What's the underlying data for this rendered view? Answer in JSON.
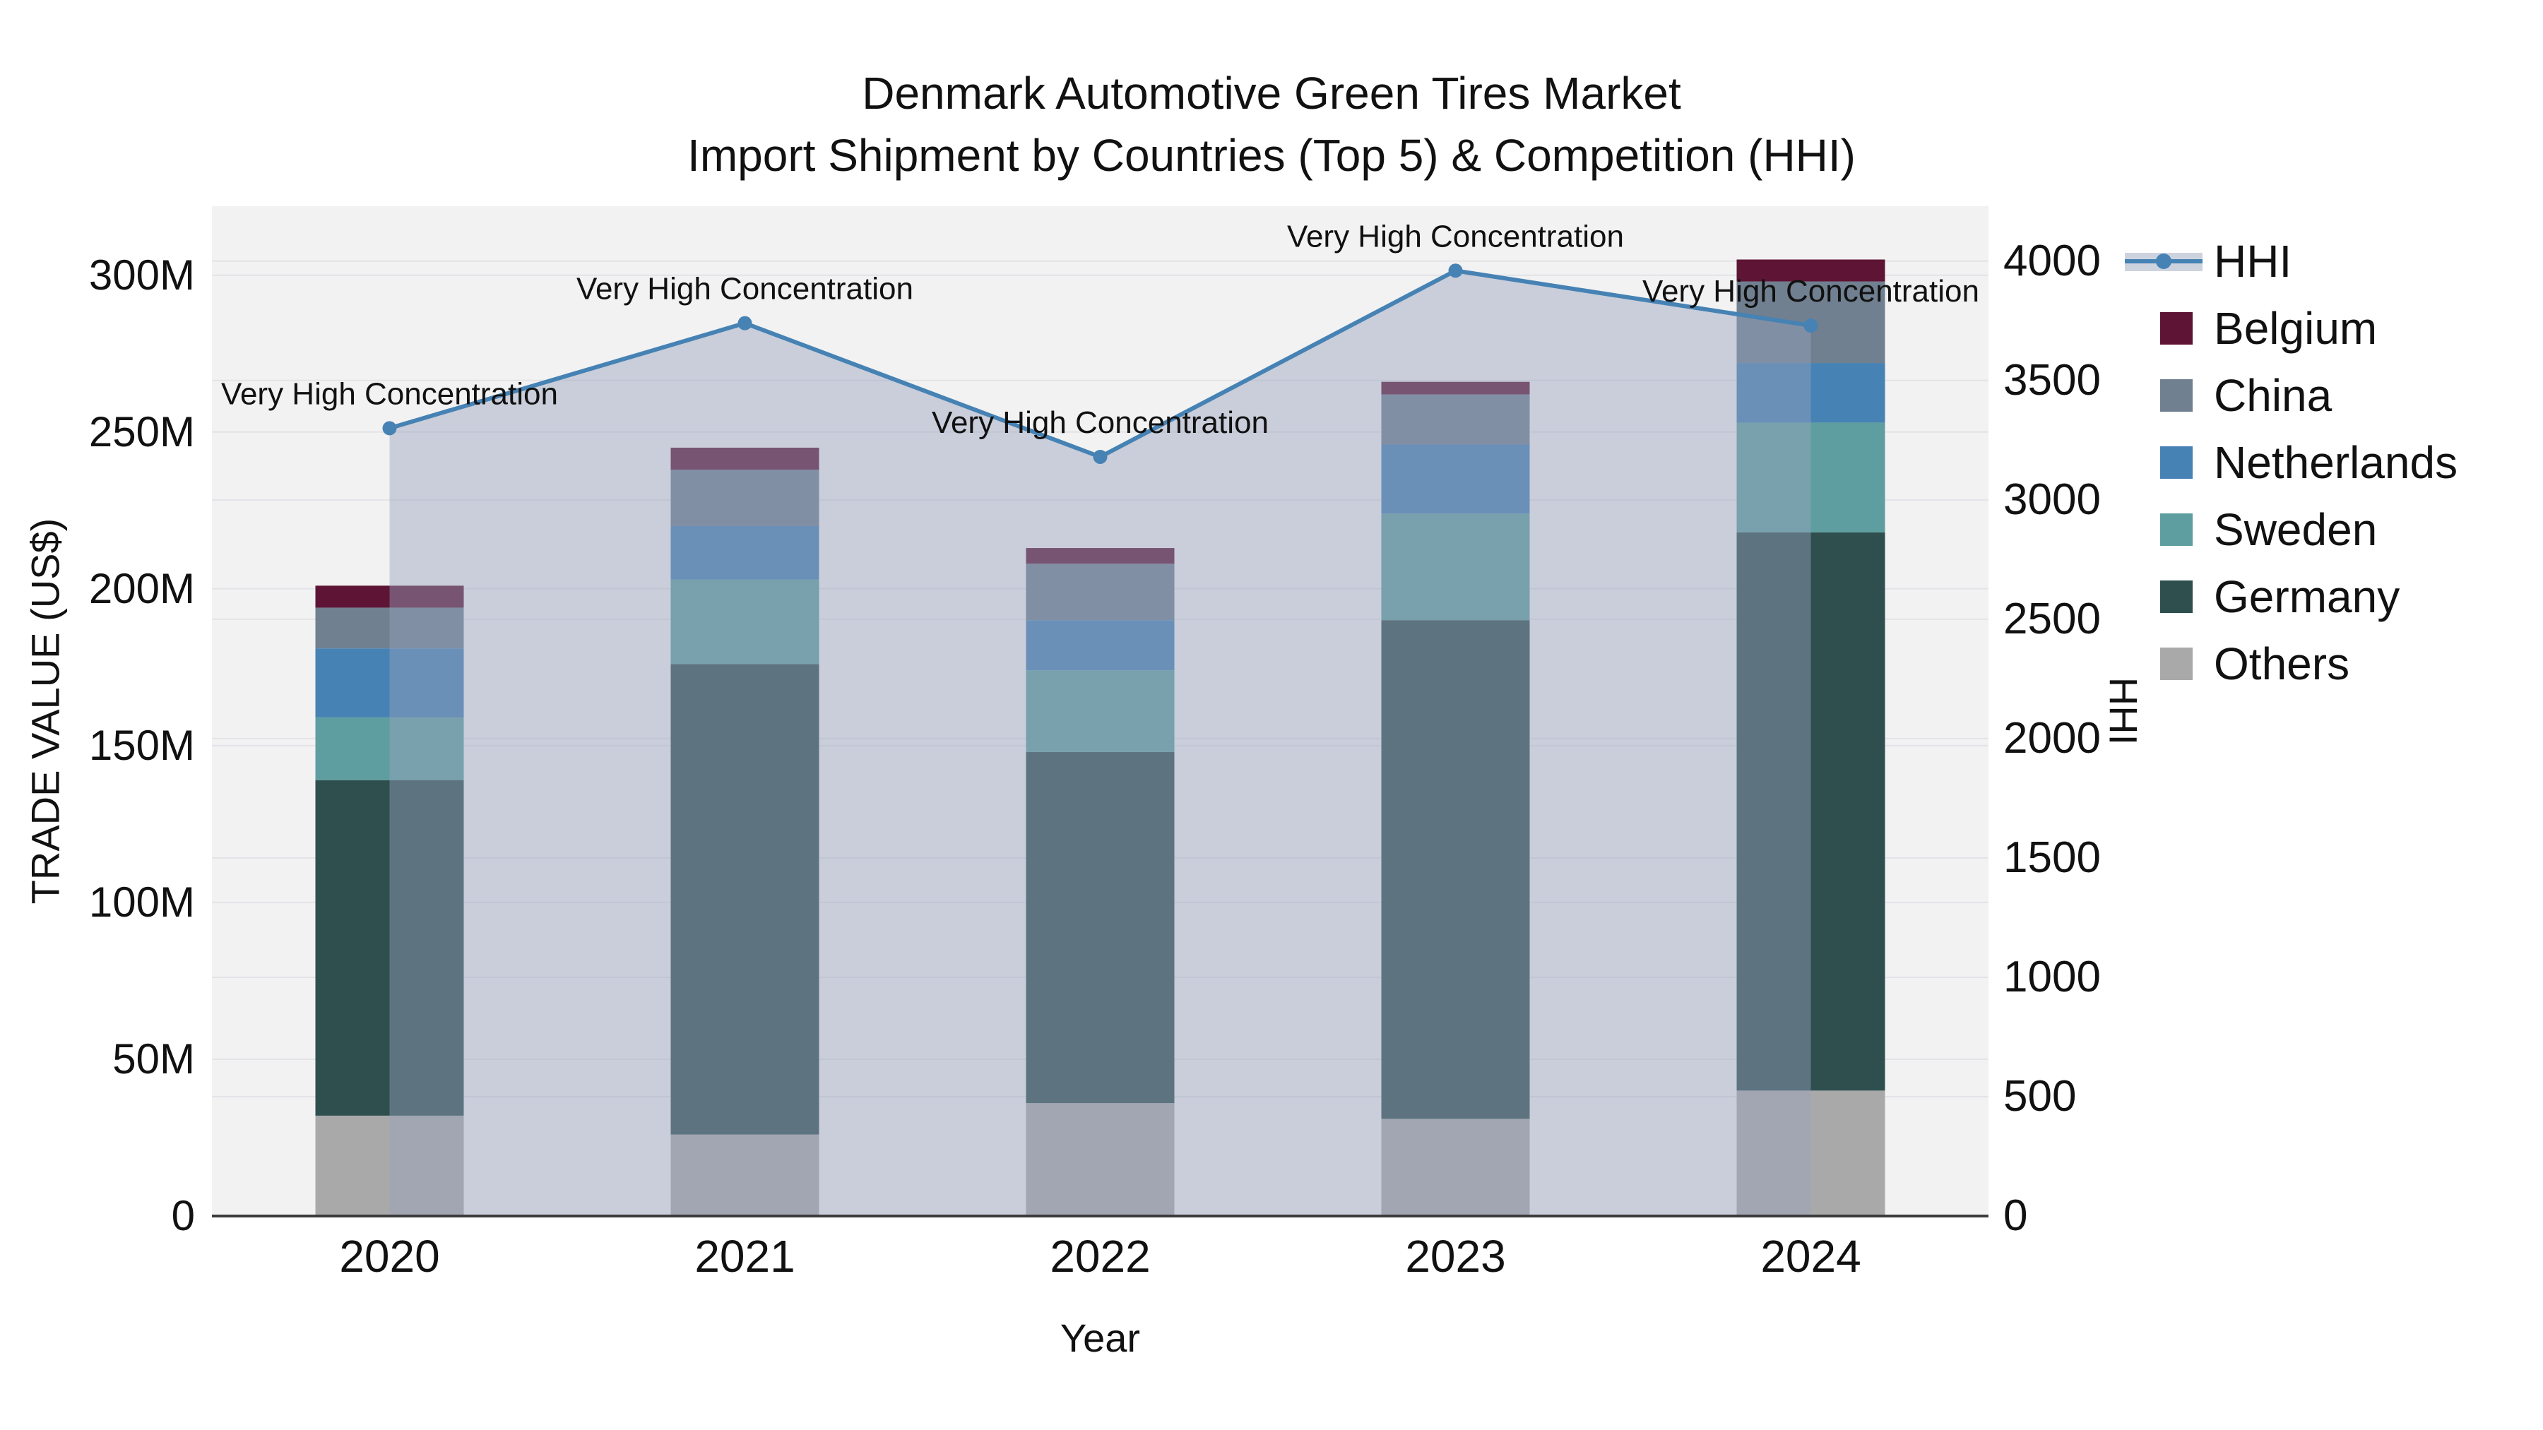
{
  "title": {
    "line1": "Denmark Automotive Green Tires Market",
    "line2": "Import Shipment by Countries (Top 5) & Competition (HHI)"
  },
  "axes": {
    "x_title": "Year",
    "y_left_title": "TRADE VALUE (US$)",
    "y_right_title": "HHI",
    "y_left_ticks": [
      {
        "label": "0",
        "value": 0
      },
      {
        "label": "50M",
        "value": 50
      },
      {
        "label": "100M",
        "value": 100
      },
      {
        "label": "150M",
        "value": 150
      },
      {
        "label": "200M",
        "value": 200
      },
      {
        "label": "250M",
        "value": 250
      },
      {
        "label": "300M",
        "value": 300
      }
    ],
    "y_right_ticks": [
      {
        "label": "0",
        "value": 0
      },
      {
        "label": "500",
        "value": 500
      },
      {
        "label": "1000",
        "value": 1000
      },
      {
        "label": "1500",
        "value": 1500
      },
      {
        "label": "2000",
        "value": 2000
      },
      {
        "label": "2500",
        "value": 2500
      },
      {
        "label": "3000",
        "value": 3000
      },
      {
        "label": "3500",
        "value": 3500
      },
      {
        "label": "4000",
        "value": 4000
      }
    ]
  },
  "legend": {
    "items": [
      {
        "label": "HHI",
        "type": "line",
        "color": "#4682b4"
      },
      {
        "label": "Belgium",
        "type": "swatch",
        "color": "#5e1535"
      },
      {
        "label": "China",
        "type": "swatch",
        "color": "#708090"
      },
      {
        "label": "Netherlands",
        "type": "swatch",
        "color": "#4682b4"
      },
      {
        "label": "Sweden",
        "type": "swatch",
        "color": "#5f9ea0"
      },
      {
        "label": "Germany",
        "type": "swatch",
        "color": "#2f4f4f"
      },
      {
        "label": "Others",
        "type": "swatch",
        "color": "#a9a9a9"
      }
    ]
  },
  "chart_data": {
    "type": "stacked-bar+line",
    "title": "Denmark Automotive Green Tires Market Import Shipment by Countries (Top 5) & Competition (HHI)",
    "xlabel": "Year",
    "ylabel_left": "TRADE VALUE (US$)",
    "ylabel_right": "HHI",
    "categories": [
      "2020",
      "2021",
      "2022",
      "2023",
      "2024"
    ],
    "bar_value_unit": "million US$",
    "series": [
      {
        "name": "Others",
        "color": "#a9a9a9",
        "values": [
          32,
          26,
          36,
          31,
          40
        ]
      },
      {
        "name": "Germany",
        "color": "#2f4f4f",
        "values": [
          107,
          150,
          112,
          159,
          178
        ]
      },
      {
        "name": "Sweden",
        "color": "#5f9ea0",
        "values": [
          20,
          27,
          26,
          34,
          35
        ]
      },
      {
        "name": "Netherlands",
        "color": "#4682b4",
        "values": [
          22,
          17,
          16,
          22,
          19
        ]
      },
      {
        "name": "China",
        "color": "#708090",
        "values": [
          13,
          18,
          18,
          16,
          26
        ]
      },
      {
        "name": "Belgium",
        "color": "#5e1535",
        "values": [
          7,
          7,
          5,
          4,
          7
        ]
      }
    ],
    "stack_order_note": "series listed bottom-to-top of stack",
    "bar_totals": [
      201,
      245,
      213,
      266,
      305
    ],
    "line": {
      "name": "HHI",
      "color": "#4682b4",
      "fill_color": "rgba(150,162,188,0.45)",
      "values": [
        3300,
        3740,
        3180,
        3960,
        3730
      ]
    },
    "annotations": [
      "Very High Concentration",
      "Very High Concentration",
      "Very High Concentration",
      "Very High Concentration",
      "Very High Concentration"
    ],
    "ylim_left": [
      0,
      322
    ],
    "ylim_right": [
      0,
      4230
    ],
    "grid": true,
    "legend_position": "right",
    "plot_bg": "#f2f2f2",
    "grid_color": "#e3e3e8"
  }
}
